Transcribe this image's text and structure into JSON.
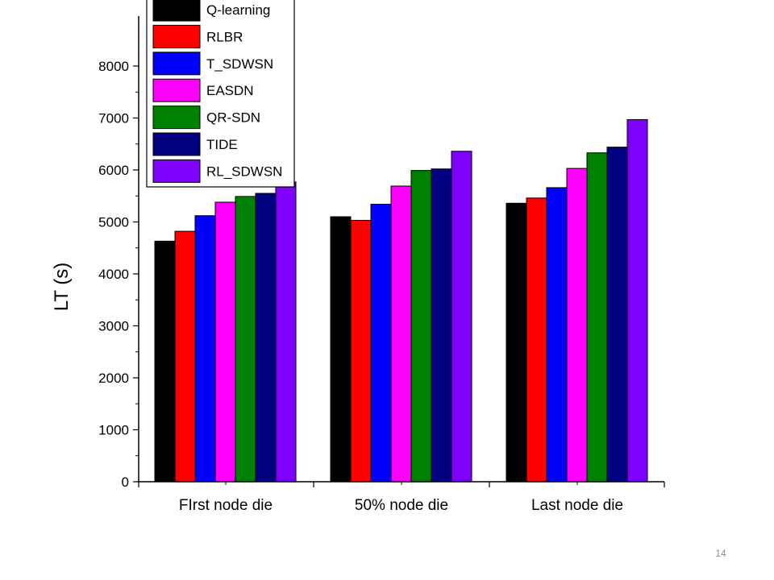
{
  "slide": {
    "page_number": "14"
  },
  "chart_data": {
    "type": "bar",
    "title": "",
    "xlabel": "",
    "ylabel": "LT (s)",
    "categories": [
      "FIrst node die",
      "50% node die",
      "Last node die"
    ],
    "ylim": [
      0,
      8000
    ],
    "yticks": [
      0,
      1000,
      2000,
      3000,
      4000,
      5000,
      6000,
      7000,
      8000
    ],
    "grid": false,
    "legend_position": "top-left",
    "series": [
      {
        "name": "Q-learning",
        "color": "#000000",
        "values": [
          4630,
          5100,
          5360
        ]
      },
      {
        "name": "RLBR",
        "color": "#ff0000",
        "values": [
          4820,
          5030,
          5460
        ]
      },
      {
        "name": "T_SDWSN",
        "color": "#0000ff",
        "values": [
          5120,
          5340,
          5660
        ]
      },
      {
        "name": "EASDN",
        "color": "#ff00ff",
        "values": [
          5380,
          5690,
          6030
        ]
      },
      {
        "name": "QR-SDN",
        "color": "#008000",
        "values": [
          5490,
          5990,
          6330
        ]
      },
      {
        "name": "TIDE",
        "color": "#000080",
        "values": [
          5550,
          6020,
          6440
        ]
      },
      {
        "name": "RL_SDWSN",
        "color": "#8000ff",
        "values": [
          5770,
          6360,
          6970
        ]
      }
    ]
  }
}
